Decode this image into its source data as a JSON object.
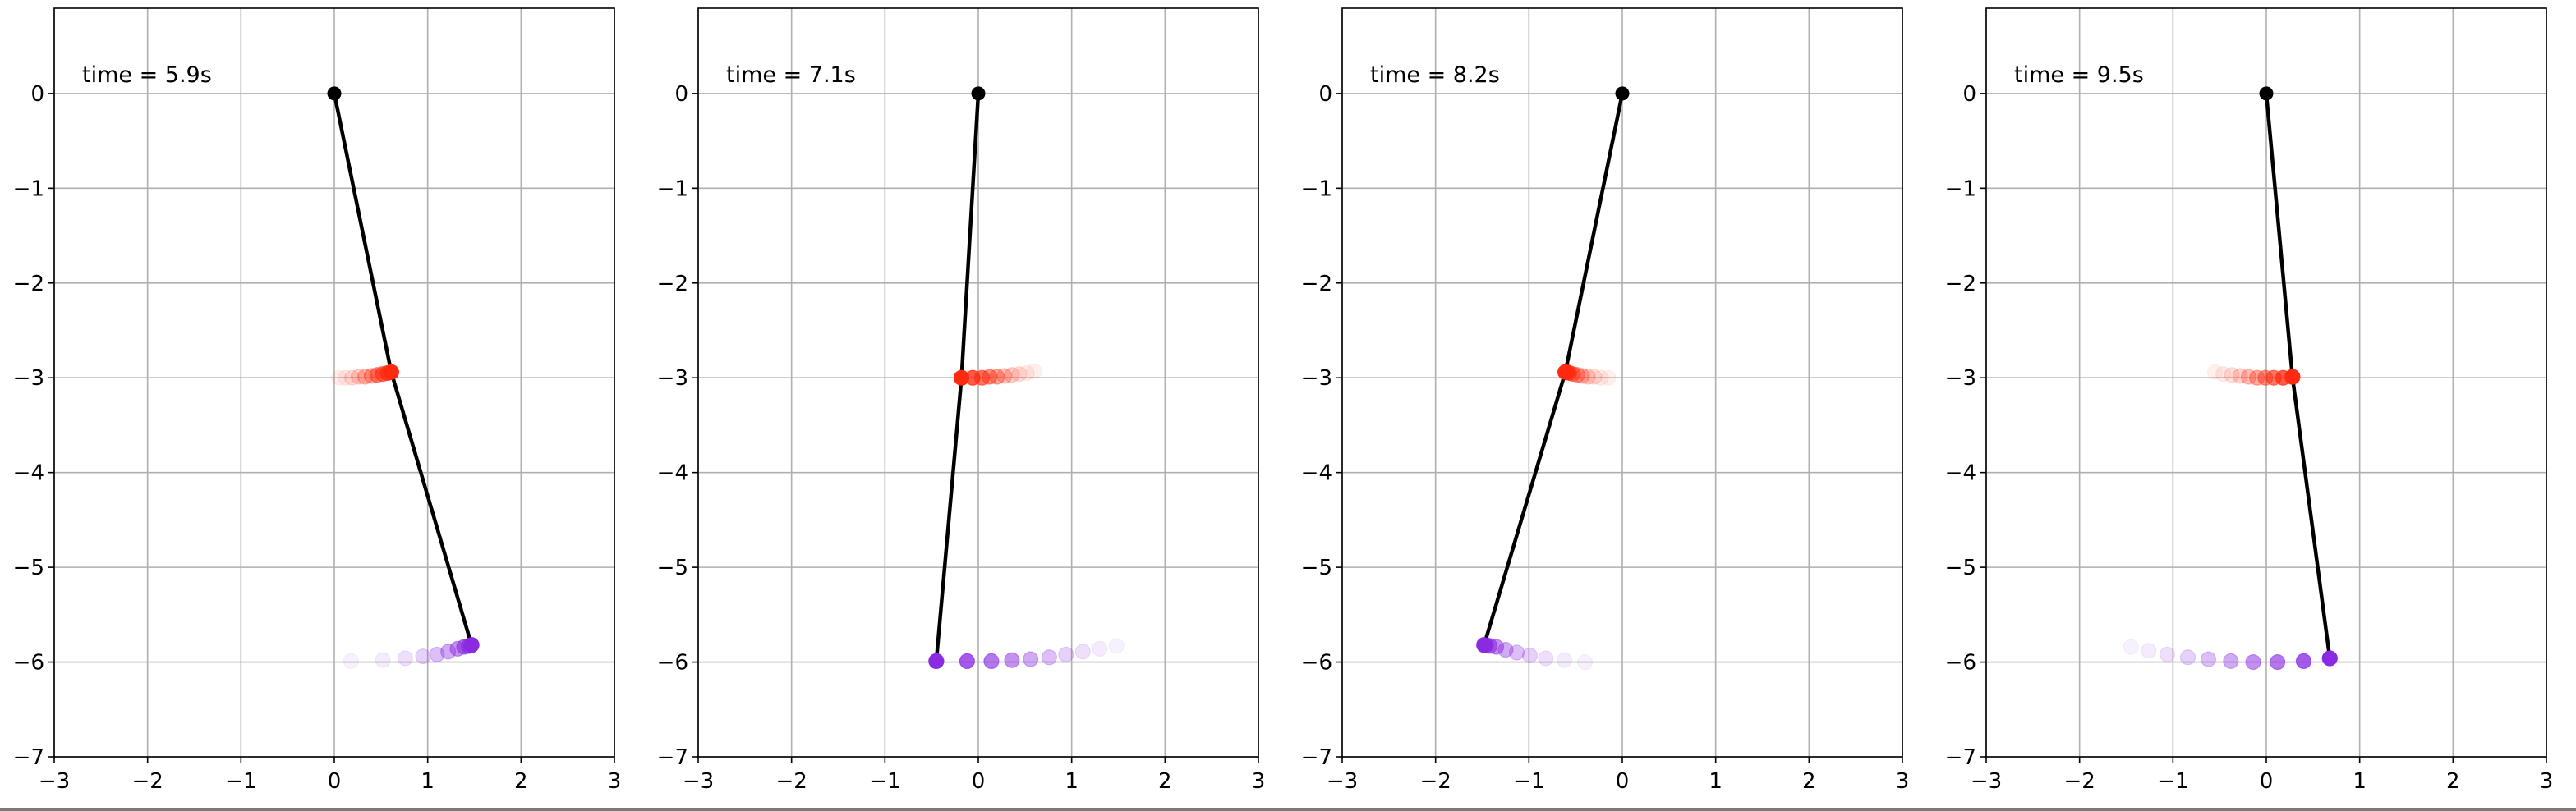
{
  "chart_data": [
    {
      "type": "scatter",
      "annotation": "time = 5.9s",
      "xlim": [
        -3,
        3
      ],
      "ylim": [
        -7,
        0.9
      ],
      "xticks": [
        -3,
        -2,
        -1,
        0,
        1,
        2,
        3
      ],
      "yticks": [
        0,
        -1,
        -2,
        -3,
        -4,
        -5,
        -6,
        -7
      ],
      "xtick_labels": [
        "−3",
        "−2",
        "−1",
        "0",
        "1",
        "2",
        "3"
      ],
      "ytick_labels": [
        "0",
        "−1",
        "−2",
        "−3",
        "−4",
        "−5",
        "−6",
        "−7"
      ],
      "grid": true,
      "pendulum": {
        "pivot": [
          0,
          0
        ],
        "joint": [
          0.61,
          -2.94
        ],
        "tip": [
          1.47,
          -5.82
        ]
      },
      "trail_mass1": [
        [
          0.05,
          -3.0
        ],
        [
          0.12,
          -3.0
        ],
        [
          0.19,
          -3.0
        ],
        [
          0.26,
          -2.99
        ],
        [
          0.33,
          -2.99
        ],
        [
          0.4,
          -2.98
        ],
        [
          0.46,
          -2.97
        ],
        [
          0.52,
          -2.96
        ],
        [
          0.57,
          -2.95
        ],
        [
          0.61,
          -2.94
        ]
      ],
      "trail_mass2": [
        [
          0.18,
          -5.99
        ],
        [
          0.52,
          -5.98
        ],
        [
          0.76,
          -5.96
        ],
        [
          0.95,
          -5.94
        ],
        [
          1.1,
          -5.92
        ],
        [
          1.22,
          -5.89
        ],
        [
          1.32,
          -5.86
        ],
        [
          1.39,
          -5.84
        ],
        [
          1.44,
          -5.83
        ],
        [
          1.47,
          -5.82
        ]
      ]
    },
    {
      "type": "scatter",
      "annotation": "time = 7.1s",
      "xlim": [
        -3,
        3
      ],
      "ylim": [
        -7,
        0.9
      ],
      "xticks": [
        -3,
        -2,
        -1,
        0,
        1,
        2,
        3
      ],
      "yticks": [
        0,
        -1,
        -2,
        -3,
        -4,
        -5,
        -6,
        -7
      ],
      "xtick_labels": [
        "−3",
        "−2",
        "−1",
        "0",
        "1",
        "2",
        "3"
      ],
      "ytick_labels": [
        "0",
        "−1",
        "−2",
        "−3",
        "−4",
        "−5",
        "−6",
        "−7"
      ],
      "grid": true,
      "pendulum": {
        "pivot": [
          0,
          0
        ],
        "joint": [
          -0.18,
          -3.0
        ],
        "tip": [
          -0.45,
          -5.99
        ]
      },
      "trail_mass1": [
        [
          0.6,
          -2.93
        ],
        [
          0.52,
          -2.95
        ],
        [
          0.44,
          -2.96
        ],
        [
          0.36,
          -2.97
        ],
        [
          0.28,
          -2.98
        ],
        [
          0.2,
          -2.99
        ],
        [
          0.12,
          -2.99
        ],
        [
          0.04,
          -3.0
        ],
        [
          -0.06,
          -3.0
        ],
        [
          -0.18,
          -3.0
        ]
      ],
      "trail_mass2": [
        [
          1.48,
          -5.83
        ],
        [
          1.3,
          -5.86
        ],
        [
          1.12,
          -5.89
        ],
        [
          0.94,
          -5.92
        ],
        [
          0.76,
          -5.95
        ],
        [
          0.56,
          -5.97
        ],
        [
          0.36,
          -5.98
        ],
        [
          0.14,
          -5.99
        ],
        [
          -0.12,
          -5.99
        ],
        [
          -0.45,
          -5.99
        ]
      ]
    },
    {
      "type": "scatter",
      "annotation": "time = 8.2s",
      "xlim": [
        -3,
        3
      ],
      "ylim": [
        -7,
        0.9
      ],
      "xticks": [
        -3,
        -2,
        -1,
        0,
        1,
        2,
        3
      ],
      "yticks": [
        0,
        -1,
        -2,
        -3,
        -4,
        -5,
        -6,
        -7
      ],
      "xtick_labels": [
        "−3",
        "−2",
        "−1",
        "0",
        "1",
        "2",
        "3"
      ],
      "ytick_labels": [
        "0",
        "−1",
        "−2",
        "−3",
        "−4",
        "−5",
        "−6",
        "−7"
      ],
      "grid": true,
      "pendulum": {
        "pivot": [
          0,
          0
        ],
        "joint": [
          -0.61,
          -2.94
        ],
        "tip": [
          -1.48,
          -5.82
        ]
      },
      "trail_mass1": [
        [
          -0.15,
          -3.0
        ],
        [
          -0.23,
          -3.0
        ],
        [
          -0.3,
          -2.99
        ],
        [
          -0.37,
          -2.99
        ],
        [
          -0.43,
          -2.98
        ],
        [
          -0.48,
          -2.97
        ],
        [
          -0.53,
          -2.96
        ],
        [
          -0.57,
          -2.95
        ],
        [
          -0.59,
          -2.94
        ],
        [
          -0.61,
          -2.94
        ]
      ],
      "trail_mass2": [
        [
          -0.4,
          -6.0
        ],
        [
          -0.62,
          -5.98
        ],
        [
          -0.82,
          -5.96
        ],
        [
          -0.99,
          -5.93
        ],
        [
          -1.13,
          -5.9
        ],
        [
          -1.25,
          -5.87
        ],
        [
          -1.35,
          -5.84
        ],
        [
          -1.42,
          -5.83
        ],
        [
          -1.46,
          -5.82
        ],
        [
          -1.48,
          -5.82
        ]
      ]
    },
    {
      "type": "scatter",
      "annotation": "time = 9.5s",
      "xlim": [
        -3,
        3
      ],
      "ylim": [
        -7,
        0.9
      ],
      "xticks": [
        -3,
        -2,
        -1,
        0,
        1,
        2,
        3
      ],
      "yticks": [
        0,
        -1,
        -2,
        -3,
        -4,
        -5,
        -6,
        -7
      ],
      "xtick_labels": [
        "−3",
        "−2",
        "−1",
        "0",
        "1",
        "2",
        "3"
      ],
      "ytick_labels": [
        "0",
        "−1",
        "−2",
        "−3",
        "−4",
        "−5",
        "−6",
        "−7"
      ],
      "grid": true,
      "pendulum": {
        "pivot": [
          0,
          0
        ],
        "joint": [
          0.28,
          -2.99
        ],
        "tip": [
          0.68,
          -5.96
        ]
      },
      "trail_mass1": [
        [
          -0.55,
          -2.94
        ],
        [
          -0.46,
          -2.96
        ],
        [
          -0.37,
          -2.97
        ],
        [
          -0.28,
          -2.98
        ],
        [
          -0.19,
          -2.99
        ],
        [
          -0.1,
          -3.0
        ],
        [
          -0.01,
          -3.0
        ],
        [
          0.08,
          -3.0
        ],
        [
          0.18,
          -3.0
        ],
        [
          0.28,
          -2.99
        ]
      ],
      "trail_mass2": [
        [
          -1.45,
          -5.84
        ],
        [
          -1.26,
          -5.88
        ],
        [
          -1.06,
          -5.92
        ],
        [
          -0.84,
          -5.95
        ],
        [
          -0.62,
          -5.97
        ],
        [
          -0.38,
          -5.99
        ],
        [
          -0.14,
          -6.0
        ],
        [
          0.12,
          -6.0
        ],
        [
          0.4,
          -5.99
        ],
        [
          0.68,
          -5.96
        ]
      ]
    }
  ],
  "colors": {
    "rod": "#000000",
    "pivot": "#000000",
    "mass1": "#ff2a10",
    "mass2": "#8a2be2",
    "grid": "#b0b0b0",
    "axes": "#000000"
  }
}
